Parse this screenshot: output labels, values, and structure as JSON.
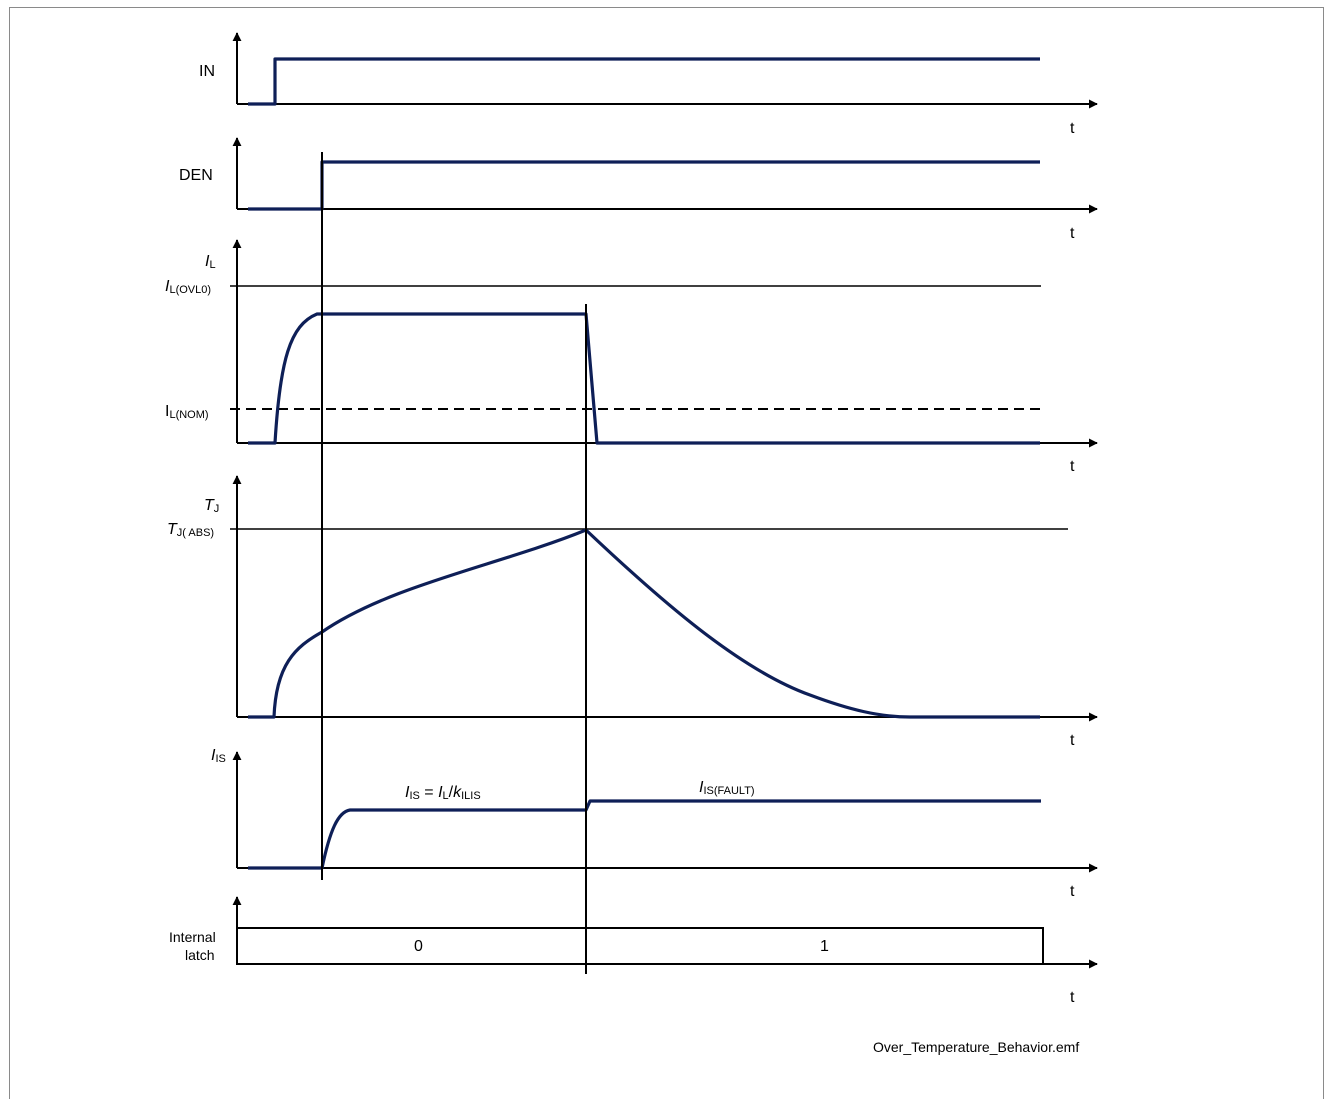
{
  "timing_diagram": {
    "traces": [
      {
        "id": "in",
        "label": "IN"
      },
      {
        "id": "den",
        "label": "DEN"
      },
      {
        "id": "il",
        "label_main": "I",
        "label_sub": "L"
      },
      {
        "id": "tj",
        "label_main": "T",
        "label_sub": "J"
      },
      {
        "id": "iis",
        "label_main": "I",
        "label_sub": "IS"
      },
      {
        "id": "latch",
        "label_line1": "Internal",
        "label_line2": "latch"
      }
    ],
    "time_axis_label": "t",
    "levels": {
      "il_ovlo": {
        "main": "I",
        "sub": "L(OVL0)"
      },
      "il_nom": {
        "main": "I",
        "sub": "L(NOM)"
      },
      "tj_abs": {
        "main": "T",
        "sub": "J( ABS)"
      }
    },
    "annotations": {
      "iis_formula": {
        "i1": "I",
        "s1": "IS",
        "eq": " = ",
        "i2": "I",
        "s2": "L",
        "slash": "/",
        "k": "k",
        "s3": "ILIS"
      },
      "iis_fault": {
        "main": "I",
        "sub": "IS(FAULT)"
      }
    },
    "latch_states": [
      "0",
      "1"
    ],
    "signal_color": "#0e1f57"
  },
  "caption": "Over_Temperature_Behavior.emf"
}
